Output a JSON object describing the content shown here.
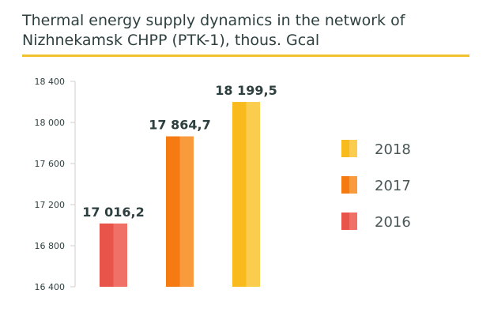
{
  "chart_data": {
    "type": "bar",
    "title": "Thermal energy supply dynamics in the network of Nizhnekamsk CHPP (PTK-1), thous. Gcal",
    "categories": [
      "2016",
      "2017",
      "2018"
    ],
    "values": [
      17016.2,
      17864.7,
      18199.5
    ],
    "value_labels": [
      "17 016,2",
      "17 864,7",
      "18 199,5"
    ],
    "ylim": [
      16400,
      18400
    ],
    "yticks": [
      16400,
      16800,
      17200,
      17600,
      18000,
      18400
    ],
    "ytick_labels": [
      "16 400",
      "16 800",
      "17 200",
      "17 600",
      "18 000",
      "18 400"
    ],
    "legend_order": [
      "2018",
      "2017",
      "2016"
    ],
    "legend_position": "right",
    "grid": false,
    "colors": {
      "2016": [
        "#e8534a",
        "#f07068"
      ],
      "2017": [
        "#f57a12",
        "#f99a3c"
      ],
      "2018": [
        "#f9ba1d",
        "#fbcd4e"
      ]
    }
  }
}
